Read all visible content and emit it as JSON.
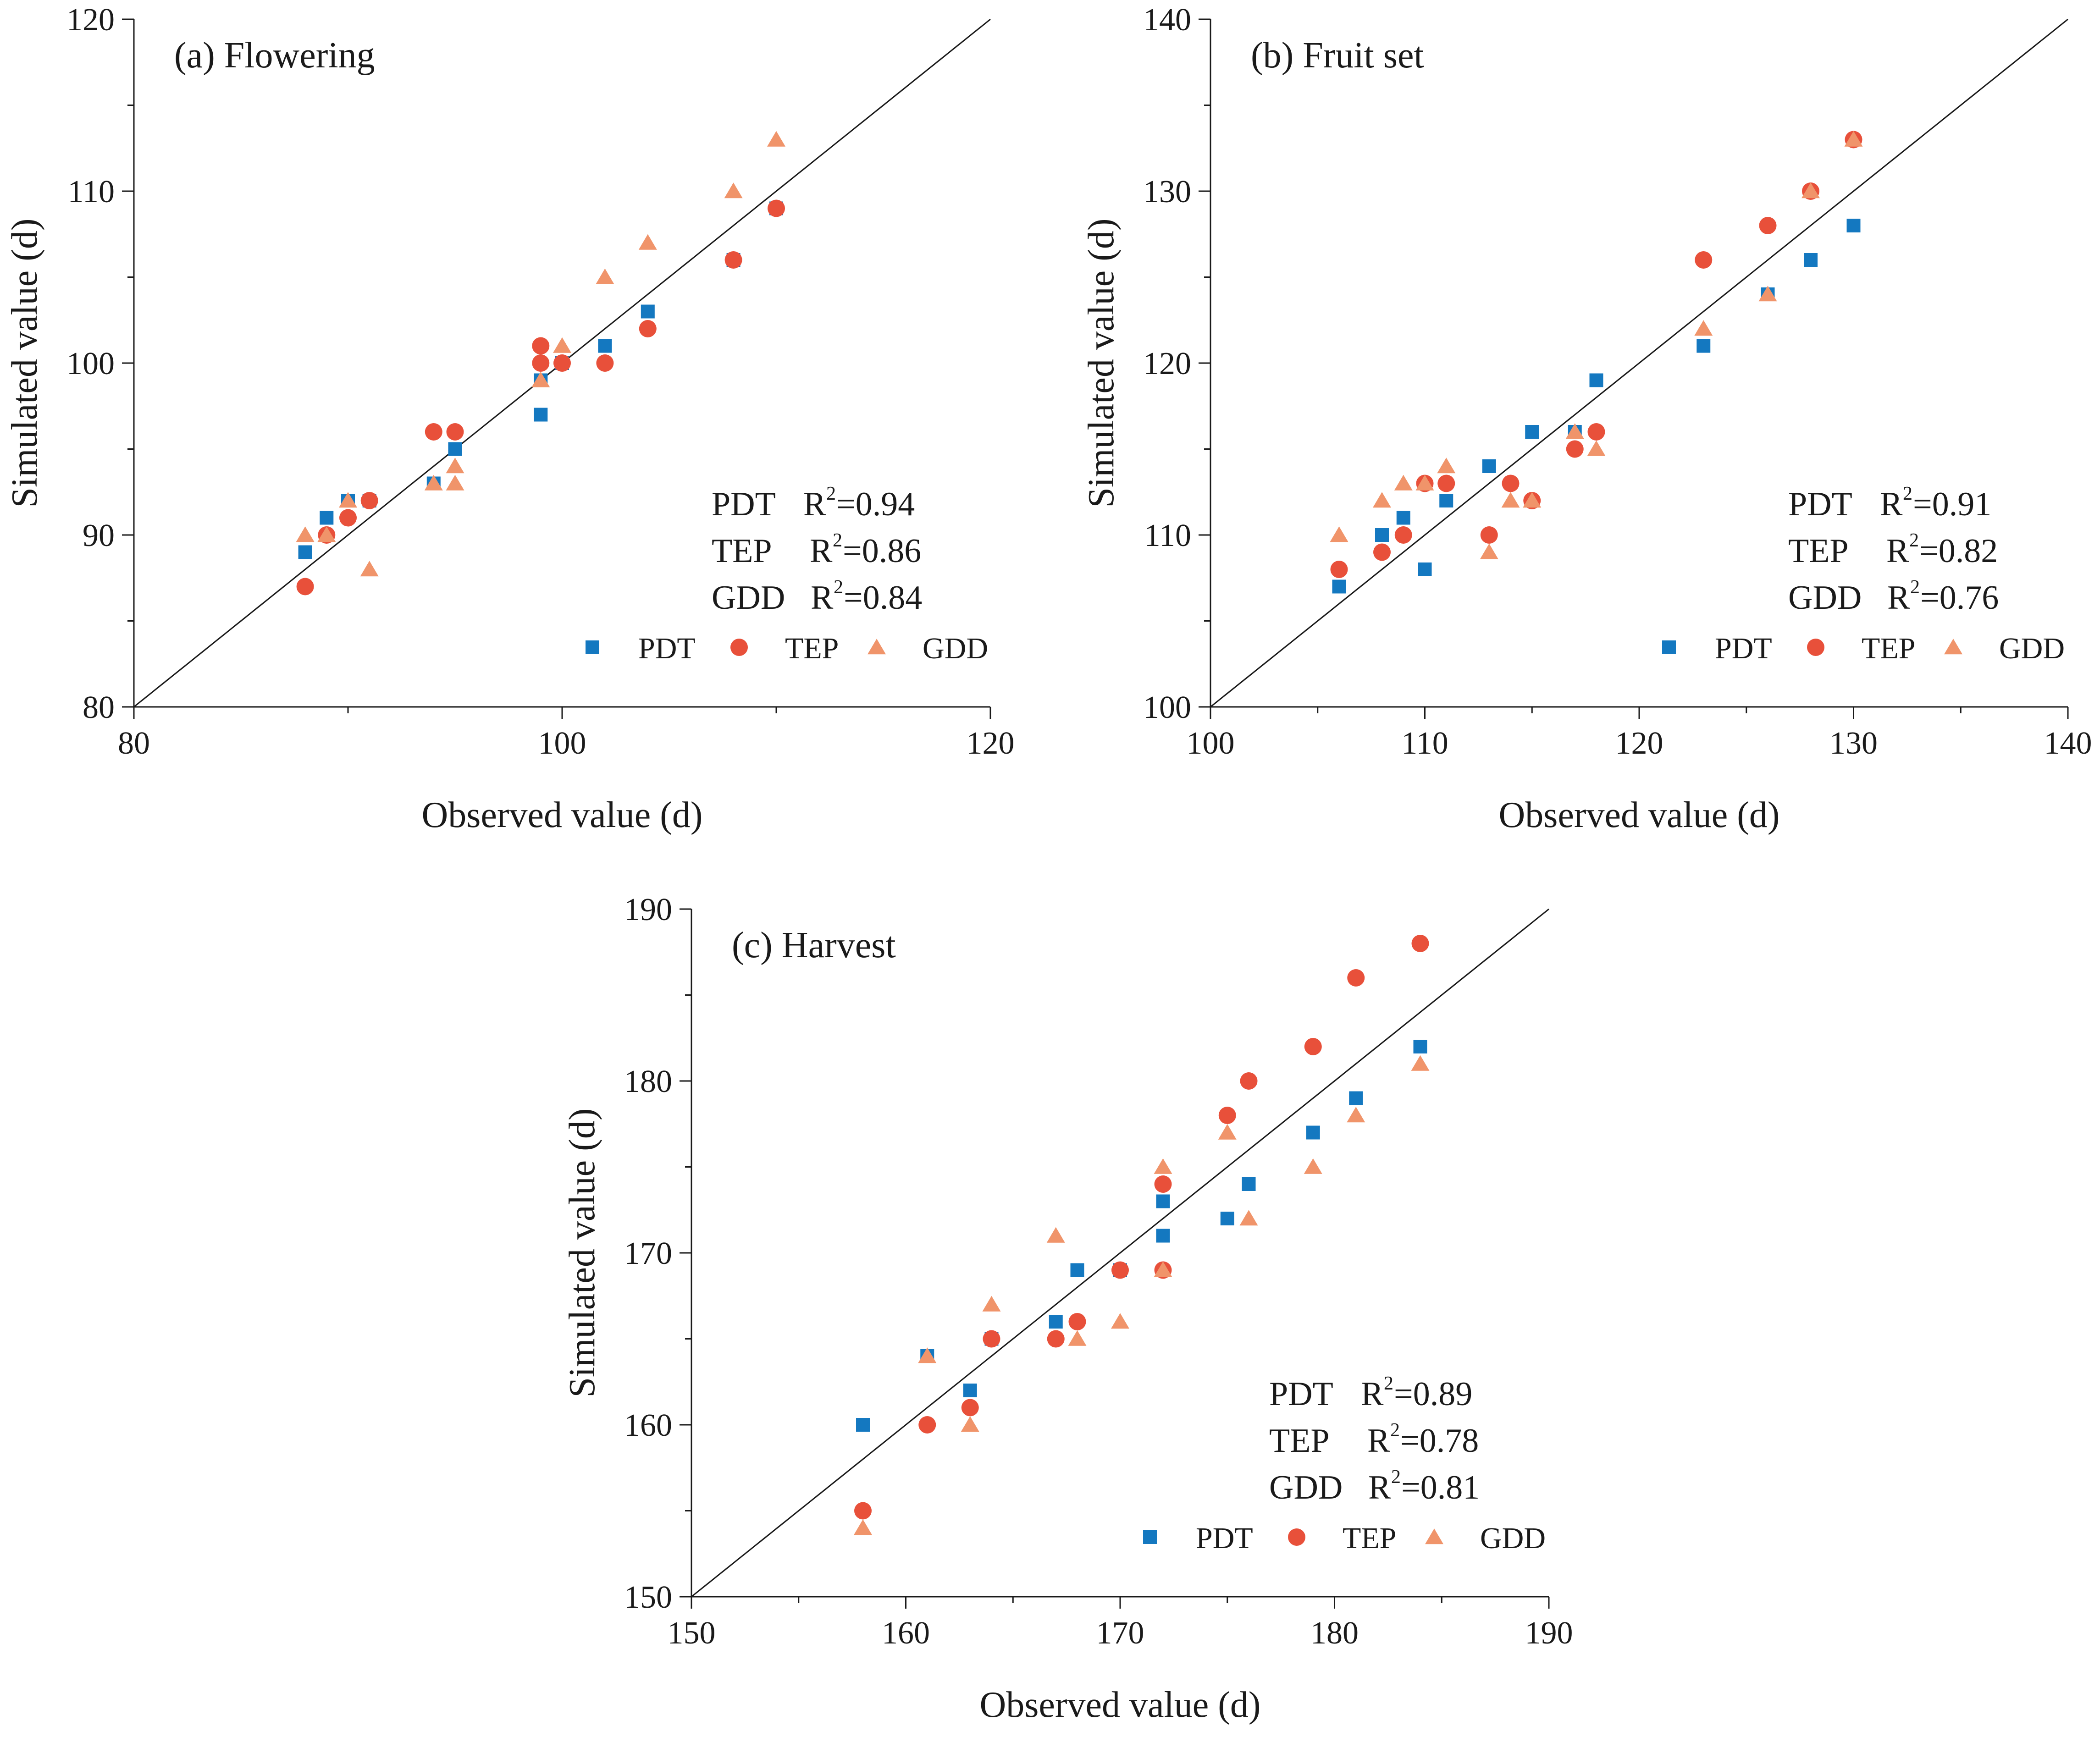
{
  "colors": {
    "PDT": "#1478c0",
    "TEP": "#e8503a",
    "GDD": "#f0946a",
    "axis": "#1a1a1a"
  },
  "chart_data": [
    {
      "type": "scatter",
      "title": "(a)  Flowering",
      "xlabel": "Observed value (d)",
      "ylabel": "Simulated value (d)",
      "xlim": [
        80,
        120
      ],
      "ylim": [
        80,
        120
      ],
      "xticks": [
        80,
        100,
        120
      ],
      "yticks": [
        80,
        90,
        100,
        110,
        120
      ],
      "stats": [
        {
          "name": "PDT",
          "r2_label": "R",
          "r2_value": "=0.94"
        },
        {
          "name": "TEP",
          "r2_label": "R",
          "r2_value": "=0.86"
        },
        {
          "name": "GDD",
          "r2_label": "R",
          "r2_value": "=0.84"
        }
      ],
      "legend": [
        "PDT",
        "TEP",
        "GDD"
      ],
      "series": [
        {
          "name": "PDT",
          "marker": "square",
          "points": [
            [
              88,
              89
            ],
            [
              89,
              91
            ],
            [
              90,
              92
            ],
            [
              91,
              92
            ],
            [
              94,
              93
            ],
            [
              95,
              95
            ],
            [
              99,
              97
            ],
            [
              99,
              99
            ],
            [
              100,
              100
            ],
            [
              102,
              101
            ],
            [
              104,
              103
            ],
            [
              108,
              106
            ],
            [
              110,
              109
            ]
          ]
        },
        {
          "name": "TEP",
          "marker": "circle",
          "points": [
            [
              88,
              87
            ],
            [
              89,
              90
            ],
            [
              90,
              91
            ],
            [
              91,
              92
            ],
            [
              94,
              96
            ],
            [
              95,
              96
            ],
            [
              99,
              100
            ],
            [
              99,
              101
            ],
            [
              100,
              100
            ],
            [
              102,
              100
            ],
            [
              104,
              102
            ],
            [
              108,
              106
            ],
            [
              110,
              109
            ]
          ]
        },
        {
          "name": "GDD",
          "marker": "triangle",
          "points": [
            [
              88,
              90
            ],
            [
              89,
              90
            ],
            [
              90,
              92
            ],
            [
              91,
              88
            ],
            [
              94,
              93
            ],
            [
              95,
              93
            ],
            [
              95,
              94
            ],
            [
              99,
              99
            ],
            [
              100,
              101
            ],
            [
              102,
              105
            ],
            [
              104,
              107
            ],
            [
              108,
              110
            ],
            [
              110,
              113
            ]
          ]
        }
      ]
    },
    {
      "type": "scatter",
      "title": "(b)  Fruit set",
      "xlabel": "Observed value (d)",
      "ylabel": "Simulated value (d)",
      "xlim": [
        100,
        140
      ],
      "ylim": [
        100,
        140
      ],
      "xticks": [
        100,
        110,
        120,
        130,
        140
      ],
      "yticks": [
        100,
        110,
        120,
        130,
        140
      ],
      "stats": [
        {
          "name": "PDT",
          "r2_label": "R",
          "r2_value": "=0.91"
        },
        {
          "name": "TEP",
          "r2_label": "R",
          "r2_value": "=0.82"
        },
        {
          "name": "GDD",
          "r2_label": "R",
          "r2_value": "=0.76"
        }
      ],
      "legend": [
        "PDT",
        "TEP",
        "GDD"
      ],
      "series": [
        {
          "name": "PDT",
          "marker": "square",
          "points": [
            [
              106,
              107
            ],
            [
              108,
              110
            ],
            [
              109,
              111
            ],
            [
              110,
              108
            ],
            [
              111,
              112
            ],
            [
              113,
              114
            ],
            [
              115,
              116
            ],
            [
              117,
              116
            ],
            [
              118,
              119
            ],
            [
              123,
              121
            ],
            [
              126,
              124
            ],
            [
              128,
              126
            ],
            [
              130,
              128
            ]
          ]
        },
        {
          "name": "TEP",
          "marker": "circle",
          "points": [
            [
              106,
              108
            ],
            [
              108,
              109
            ],
            [
              109,
              110
            ],
            [
              110,
              113
            ],
            [
              111,
              113
            ],
            [
              113,
              110
            ],
            [
              114,
              113
            ],
            [
              115,
              112
            ],
            [
              117,
              115
            ],
            [
              118,
              116
            ],
            [
              123,
              126
            ],
            [
              126,
              128
            ],
            [
              128,
              130
            ],
            [
              130,
              133
            ]
          ]
        },
        {
          "name": "GDD",
          "marker": "triangle",
          "points": [
            [
              106,
              110
            ],
            [
              108,
              112
            ],
            [
              109,
              113
            ],
            [
              110,
              113
            ],
            [
              111,
              114
            ],
            [
              113,
              109
            ],
            [
              114,
              112
            ],
            [
              115,
              112
            ],
            [
              117,
              116
            ],
            [
              118,
              115
            ],
            [
              123,
              122
            ],
            [
              126,
              124
            ],
            [
              128,
              130
            ],
            [
              130,
              133
            ]
          ]
        }
      ]
    },
    {
      "type": "scatter",
      "title": "(c)  Harvest",
      "xlabel": "Observed value (d)",
      "ylabel": "Simulated value (d)",
      "xlim": [
        150,
        190
      ],
      "ylim": [
        150,
        190
      ],
      "xticks": [
        150,
        160,
        170,
        180,
        190
      ],
      "yticks": [
        150,
        160,
        170,
        180,
        190
      ],
      "stats": [
        {
          "name": "PDT",
          "r2_label": "R",
          "r2_value": "=0.89"
        },
        {
          "name": "TEP",
          "r2_label": "R",
          "r2_value": "=0.78"
        },
        {
          "name": "GDD",
          "r2_label": "R",
          "r2_value": "=0.81"
        }
      ],
      "legend": [
        "PDT",
        "TEP",
        "GDD"
      ],
      "series": [
        {
          "name": "PDT",
          "marker": "square",
          "points": [
            [
              158,
              160
            ],
            [
              161,
              164
            ],
            [
              163,
              162
            ],
            [
              164,
              165
            ],
            [
              167,
              166
            ],
            [
              168,
              169
            ],
            [
              170,
              169
            ],
            [
              172,
              173
            ],
            [
              172,
              171
            ],
            [
              175,
              172
            ],
            [
              176,
              174
            ],
            [
              179,
              177
            ],
            [
              181,
              179
            ],
            [
              184,
              182
            ]
          ]
        },
        {
          "name": "TEP",
          "marker": "circle",
          "points": [
            [
              158,
              155
            ],
            [
              161,
              160
            ],
            [
              163,
              161
            ],
            [
              164,
              165
            ],
            [
              167,
              165
            ],
            [
              168,
              166
            ],
            [
              170,
              169
            ],
            [
              172,
              174
            ],
            [
              172,
              169
            ],
            [
              175,
              178
            ],
            [
              176,
              180
            ],
            [
              179,
              182
            ],
            [
              181,
              186
            ],
            [
              184,
              188
            ]
          ]
        },
        {
          "name": "GDD",
          "marker": "triangle",
          "points": [
            [
              158,
              154
            ],
            [
              161,
              164
            ],
            [
              163,
              160
            ],
            [
              164,
              167
            ],
            [
              167,
              171
            ],
            [
              168,
              165
            ],
            [
              170,
              166
            ],
            [
              172,
              175
            ],
            [
              172,
              169
            ],
            [
              175,
              177
            ],
            [
              176,
              172
            ],
            [
              179,
              175
            ],
            [
              181,
              178
            ],
            [
              184,
              181
            ]
          ]
        }
      ]
    }
  ]
}
